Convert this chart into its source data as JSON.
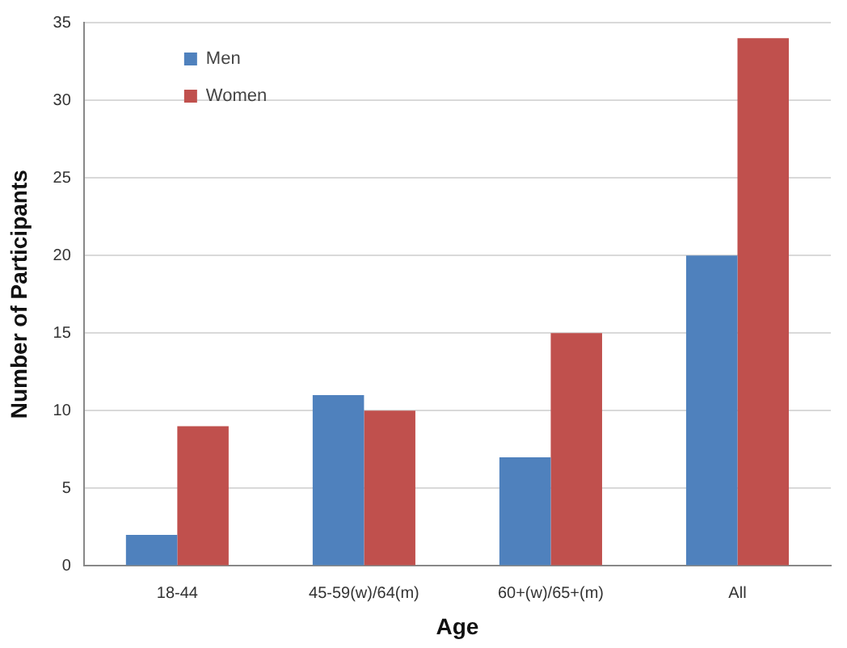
{
  "chart_data": {
    "type": "bar",
    "xlabel": "Age",
    "ylabel": "Number of Participants",
    "categories": [
      "18-44",
      "45-59(w)/64(m)",
      "60+(w)/65+(m)",
      "All"
    ],
    "series": [
      {
        "name": "Men",
        "color": "#4f81bd",
        "values": [
          2,
          11,
          7,
          20
        ]
      },
      {
        "name": "Women",
        "color": "#c0504d",
        "values": [
          9,
          10,
          15,
          34
        ]
      }
    ],
    "ylim": [
      0,
      35
    ],
    "yticks": [
      0,
      5,
      10,
      15,
      20,
      25,
      30,
      35
    ],
    "grid": "y",
    "legend": "top left"
  }
}
